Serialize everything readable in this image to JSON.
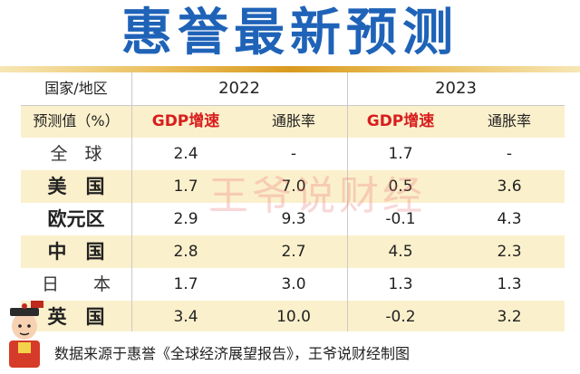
{
  "title": "惠誉最新预测",
  "header": {
    "region_label": "国家/地区",
    "year_a": "2022",
    "year_b": "2023",
    "value_label": "预测值（%）",
    "gdp_label": "GDP增速",
    "inflation_label": "通胀率"
  },
  "rows": [
    {
      "region": "全　球",
      "gdp_2022": "2.4",
      "inf_2022": "-",
      "gdp_2023": "1.7",
      "inf_2023": "-"
    },
    {
      "region": "美　国",
      "gdp_2022": "1.7",
      "inf_2022": "7.0",
      "gdp_2023": "0.5",
      "inf_2023": "3.6"
    },
    {
      "region": "欧元区",
      "gdp_2022": "2.9",
      "inf_2022": "9.3",
      "gdp_2023": "-0.1",
      "inf_2023": "4.3"
    },
    {
      "region": "中　国",
      "gdp_2022": "2.8",
      "inf_2022": "2.7",
      "gdp_2023": "4.5",
      "inf_2023": "2.3"
    },
    {
      "region": "日　　本",
      "gdp_2022": "1.7",
      "inf_2022": "3.0",
      "gdp_2023": "1.3",
      "inf_2023": "1.3"
    },
    {
      "region": "英　国",
      "gdp_2022": "3.4",
      "inf_2022": "10.0",
      "gdp_2023": "-0.2",
      "inf_2023": "3.2"
    }
  ],
  "watermark": "王爷说财经",
  "footer": "数据来源于惠誉《全球经济展望报告》，王爷说财经制图",
  "colors": {
    "title": "#1f63b8",
    "gdp_header": "#d81e1e",
    "shade": "#fbf0cc",
    "gold": "#d99a1f"
  },
  "icons": {
    "mascot": "cartoon-official-icon"
  }
}
